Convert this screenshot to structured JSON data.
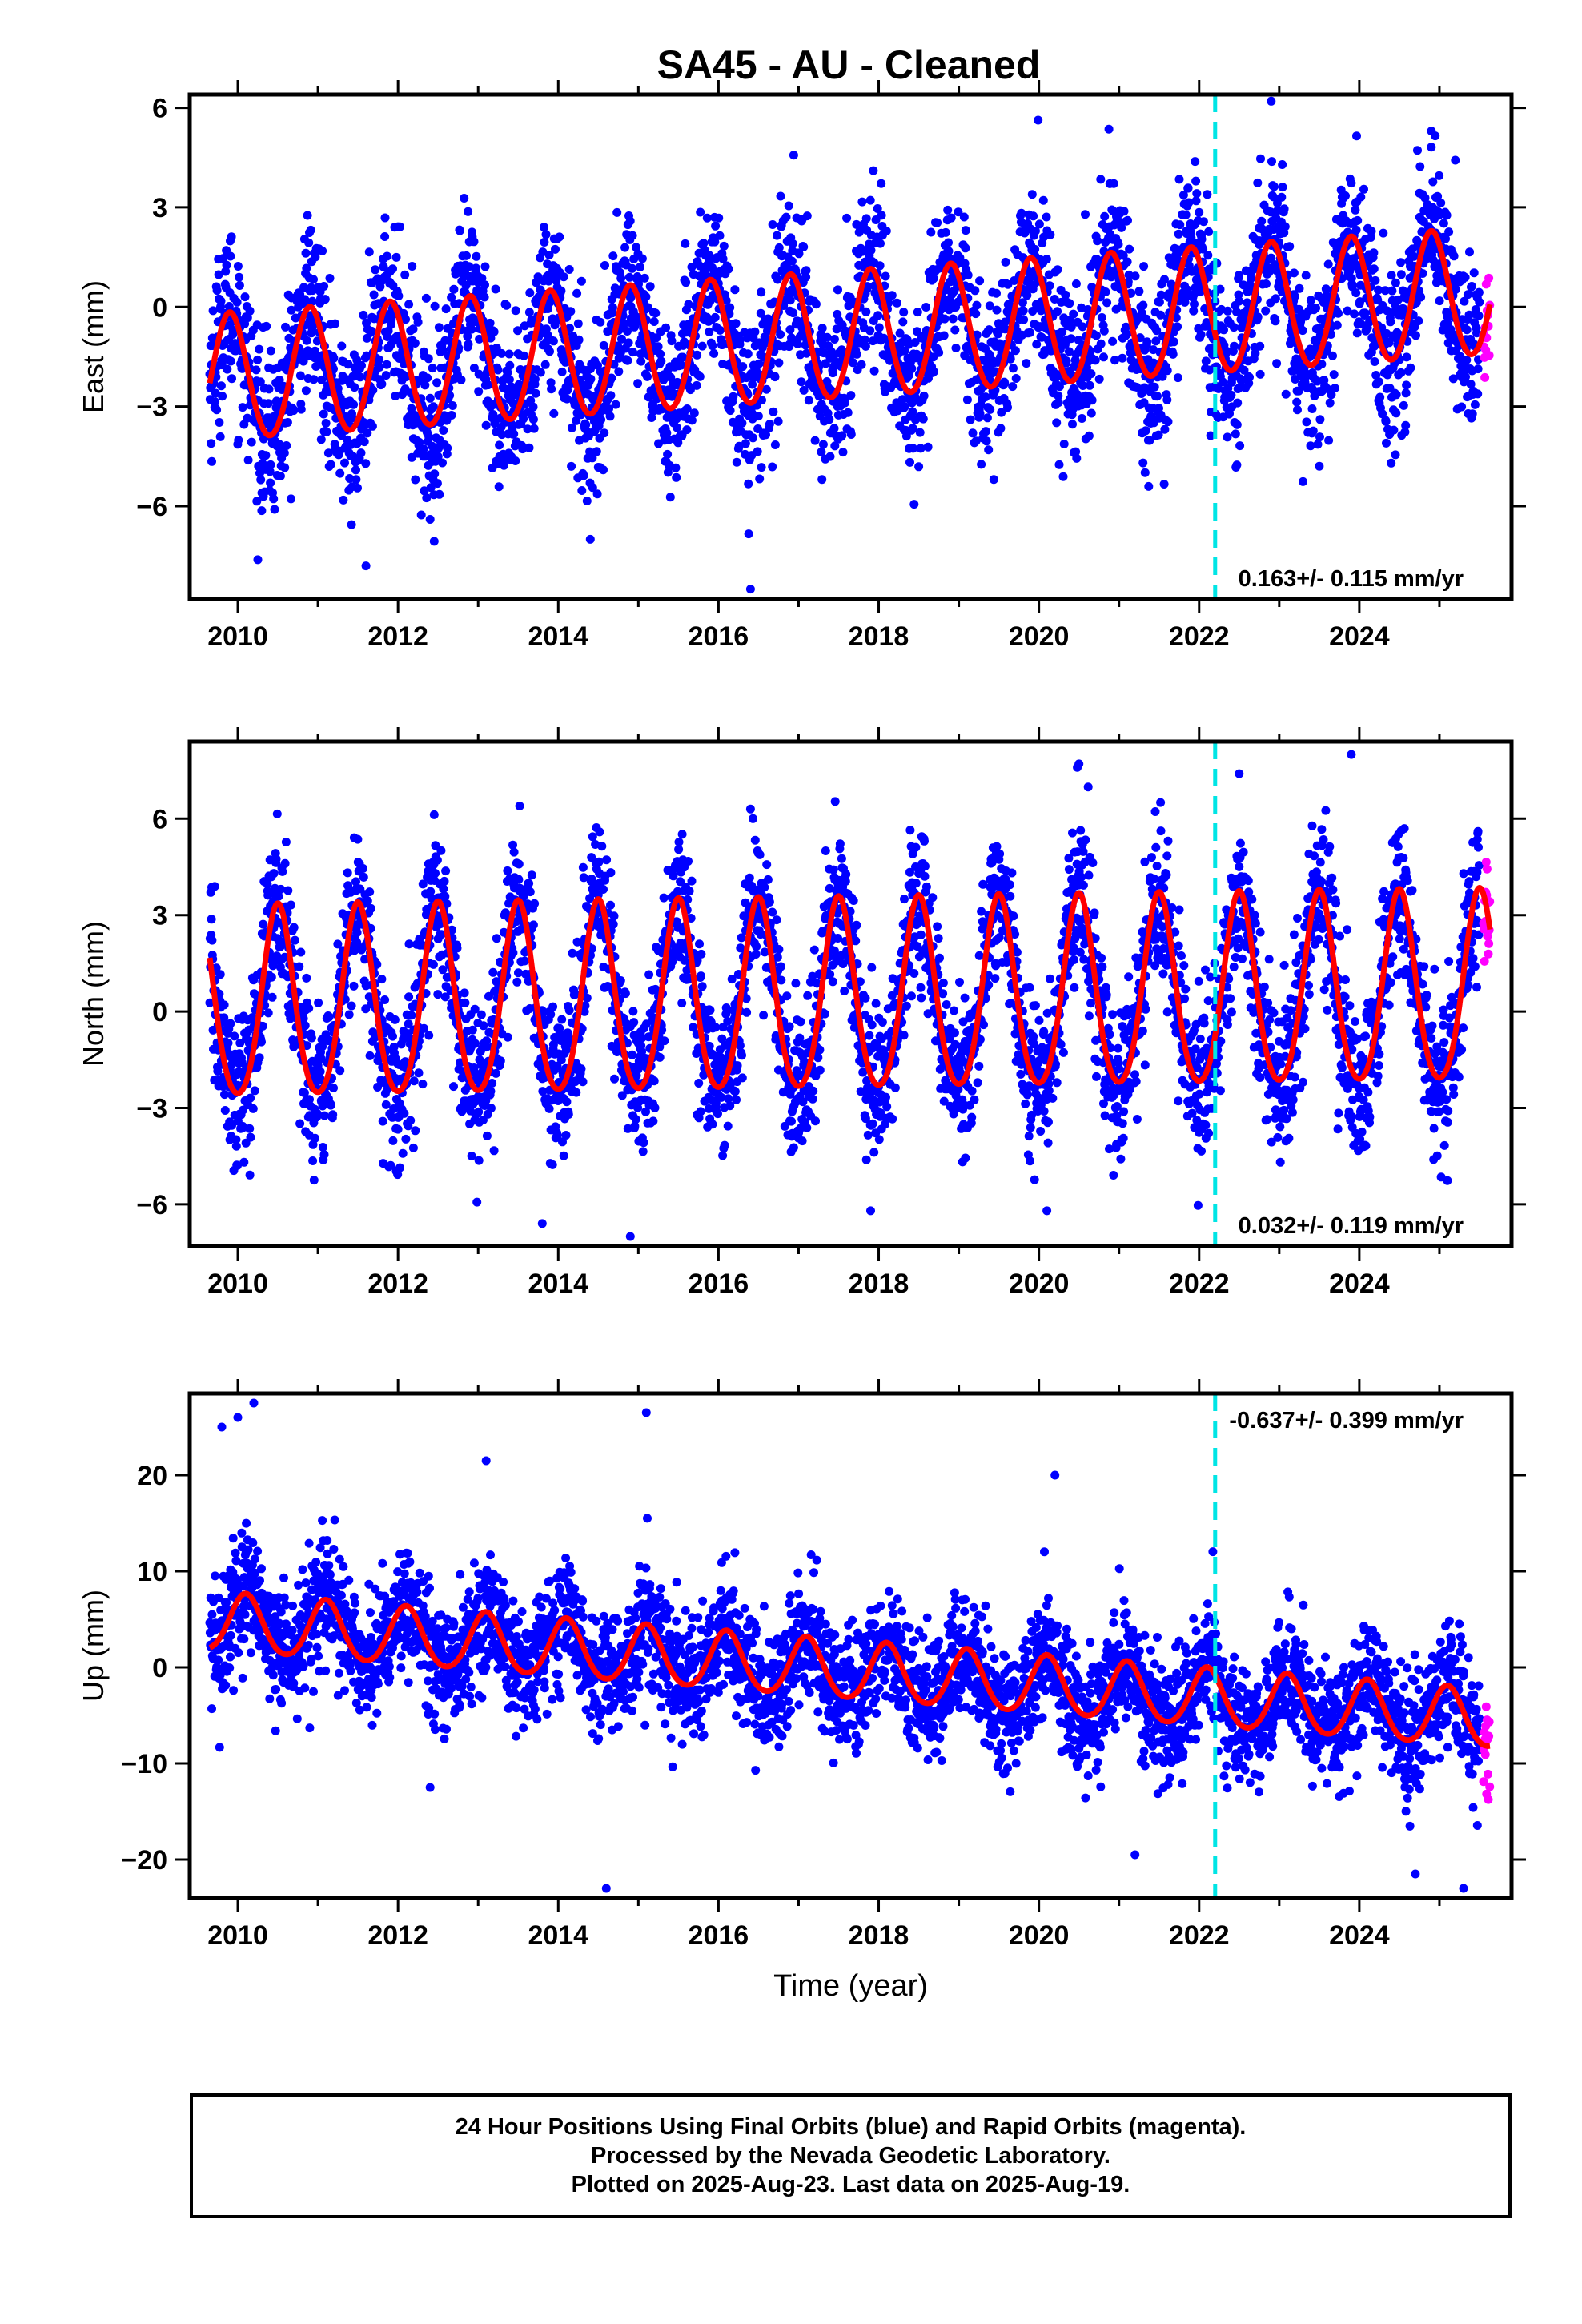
{
  "title": "SA45  - AU - Cleaned",
  "colors": {
    "final_orbits": "#0000ff",
    "rapid_orbits": "#ff00ff",
    "model_fit": "#ff0000",
    "equipment_change": "#00e5e5"
  },
  "caption": {
    "line1": "24 Hour Positions Using Final Orbits (blue) and Rapid Orbits (magenta).",
    "line2": "Processed by the Nevada Geodetic Laboratory.",
    "line3": "Plotted on 2025-Aug-23. Last data on 2025-Aug-19."
  },
  "chart_data": [
    {
      "type": "scatter",
      "panel": "east",
      "ylabel": "East (mm)",
      "xlabel": "",
      "xlim": [
        2009.4,
        2025.9
      ],
      "ylim": [
        -8.8,
        6.4
      ],
      "xticks": [
        2010,
        2012,
        2014,
        2016,
        2018,
        2020,
        2022,
        2024
      ],
      "yticks": [
        -6,
        -3,
        0,
        3,
        6
      ],
      "ytick_labels": [
        "−6",
        "−3",
        "0",
        "3",
        "6"
      ],
      "rate_label": "0.163+/- 0.115 mm/yr",
      "rate_position": "bottom-right",
      "vertical_line_x": 2022.2,
      "series": [
        {
          "kind": "final_orbits",
          "x_range": [
            2009.65,
            2025.5
          ],
          "approx_scatter": 1.25
        },
        {
          "kind": "rapid_orbits",
          "x_range": [
            2025.55,
            2025.63
          ]
        },
        {
          "kind": "model_fit",
          "trend_mm_per_yr": 0.163,
          "offset": -0.9,
          "annual_amplitude": 1.9,
          "annual_amplitude_end": 1.9,
          "peak_phase": 0.9,
          "semiannual_amplitude": 0.1
        }
      ],
      "outliers": [
        [
          2011.6,
          -7.8
        ],
        [
          2014.4,
          -7.0
        ],
        [
          2016.4,
          -8.5
        ],
        [
          2012.4,
          -6.4
        ],
        [
          2010.3,
          -5.6
        ],
        [
          2023.5,
          -4.8
        ],
        [
          2021.3,
          -4.7
        ],
        [
          2022.9,
          6.2
        ],
        [
          2024.9,
          5.3
        ]
      ]
    },
    {
      "type": "scatter",
      "panel": "north",
      "ylabel": "North (mm)",
      "xlabel": "",
      "xlim": [
        2009.4,
        2025.9
      ],
      "ylim": [
        -7.3,
        8.4
      ],
      "xticks": [
        2010,
        2012,
        2014,
        2016,
        2018,
        2020,
        2022,
        2024
      ],
      "yticks": [
        -6,
        -3,
        0,
        3,
        6
      ],
      "ytick_labels": [
        "−6",
        "−3",
        "0",
        "3",
        "6"
      ],
      "rate_label": "0.032+/- 0.119 mm/yr",
      "rate_position": "bottom-right",
      "vertical_line_x": 2022.2,
      "series": [
        {
          "kind": "final_orbits",
          "x_range": [
            2009.65,
            2025.5
          ],
          "approx_scatter": 1.2
        },
        {
          "kind": "rapid_orbits",
          "x_range": [
            2025.55,
            2025.63
          ]
        },
        {
          "kind": "model_fit",
          "trend_mm_per_yr": 0.032,
          "offset": 0.3,
          "annual_amplitude": 2.95,
          "annual_amplitude_end": 2.95,
          "peak_phase": 0.5,
          "semiannual_amplitude": 0.35
        }
      ],
      "outliers": [
        [
          2014.9,
          -7.0
        ],
        [
          2013.8,
          -6.6
        ],
        [
          2020.1,
          -6.2
        ],
        [
          2017.9,
          -6.2
        ],
        [
          2023.9,
          8.0
        ],
        [
          2022.5,
          7.4
        ],
        [
          2016.4,
          6.3
        ]
      ]
    },
    {
      "type": "scatter",
      "panel": "up",
      "ylabel": "Up (mm)",
      "xlabel": "Time (year)",
      "xlim": [
        2009.4,
        2025.9
      ],
      "ylim": [
        -24,
        28.5
      ],
      "xticks": [
        2010,
        2012,
        2014,
        2016,
        2018,
        2020,
        2022,
        2024
      ],
      "yticks": [
        -20,
        -10,
        0,
        10,
        20
      ],
      "ytick_labels": [
        "−20",
        "−10",
        "0",
        "10",
        "20"
      ],
      "rate_label": "-0.637+/- 0.399 mm/yr",
      "rate_position": "top-right",
      "vertical_line_x": 2022.2,
      "series": [
        {
          "kind": "final_orbits",
          "x_range": [
            2009.65,
            2025.5
          ],
          "approx_scatter": 3.2
        },
        {
          "kind": "rapid_orbits",
          "x_range": [
            2025.55,
            2025.63
          ]
        },
        {
          "kind": "model_fit",
          "trend_mm_per_yr": -0.637,
          "offset": -0.4,
          "annual_amplitude": 3.0,
          "annual_amplitude_end": 3.0,
          "peak_phase": 0.1,
          "semiannual_amplitude": 0.3
        }
      ],
      "outliers": [
        [
          2009.8,
          25.0
        ],
        [
          2010.2,
          27.5
        ],
        [
          2010.0,
          26.0
        ],
        [
          2015.1,
          26.5
        ],
        [
          2013.1,
          21.5
        ],
        [
          2020.2,
          20.0
        ],
        [
          2014.6,
          -23.0
        ],
        [
          2025.3,
          -23.0
        ],
        [
          2024.7,
          -21.5
        ],
        [
          2021.2,
          -19.5
        ],
        [
          2012.4,
          -12.5
        ]
      ]
    }
  ]
}
